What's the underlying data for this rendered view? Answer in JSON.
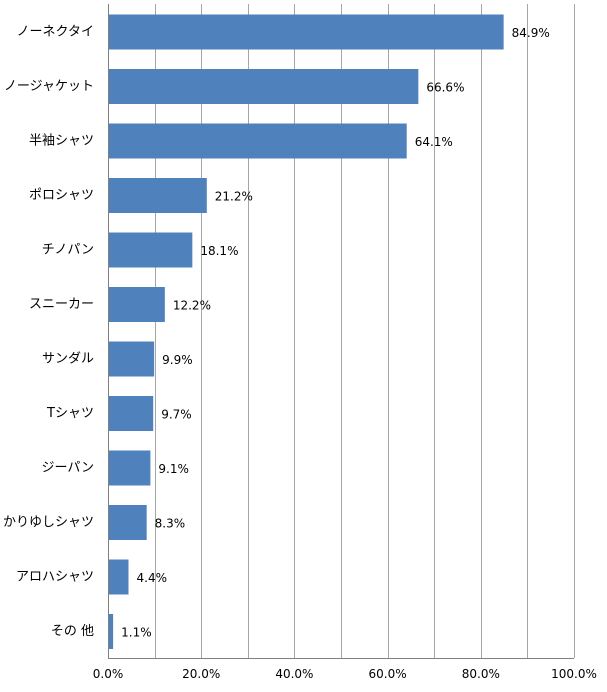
{
  "chart_data": {
    "type": "bar",
    "orientation": "horizontal",
    "categories": [
      "ノーネクタイ",
      "ノージャケット",
      "半袖シャツ",
      "ポロシャツ",
      "チノパン",
      "スニーカー",
      "サンダル",
      "Tシャツ",
      "ジーパン",
      "かりゆしシャツ",
      "アロハシャツ",
      "その 他"
    ],
    "values": [
      84.9,
      66.6,
      64.1,
      21.2,
      18.1,
      12.2,
      9.9,
      9.7,
      9.1,
      8.3,
      4.4,
      1.1
    ],
    "value_labels": [
      "84.9%",
      "66.6%",
      "64.1%",
      "21.2%",
      "18.1%",
      "12.2%",
      "9.9%",
      "9.7%",
      "9.1%",
      "8.3%",
      "4.4%",
      "1.1%"
    ],
    "xlim": [
      0,
      100
    ],
    "xticks": [
      0,
      20,
      40,
      60,
      80,
      100
    ],
    "xtick_labels": [
      "0.0%",
      "20.0%",
      "40.0%",
      "60.0%",
      "80.0%",
      "100.0%"
    ],
    "minor_gridlines_every": 10,
    "grid": true,
    "legend": false,
    "bar_color": "#4f81bd",
    "title": "",
    "xlabel": "",
    "ylabel": ""
  }
}
